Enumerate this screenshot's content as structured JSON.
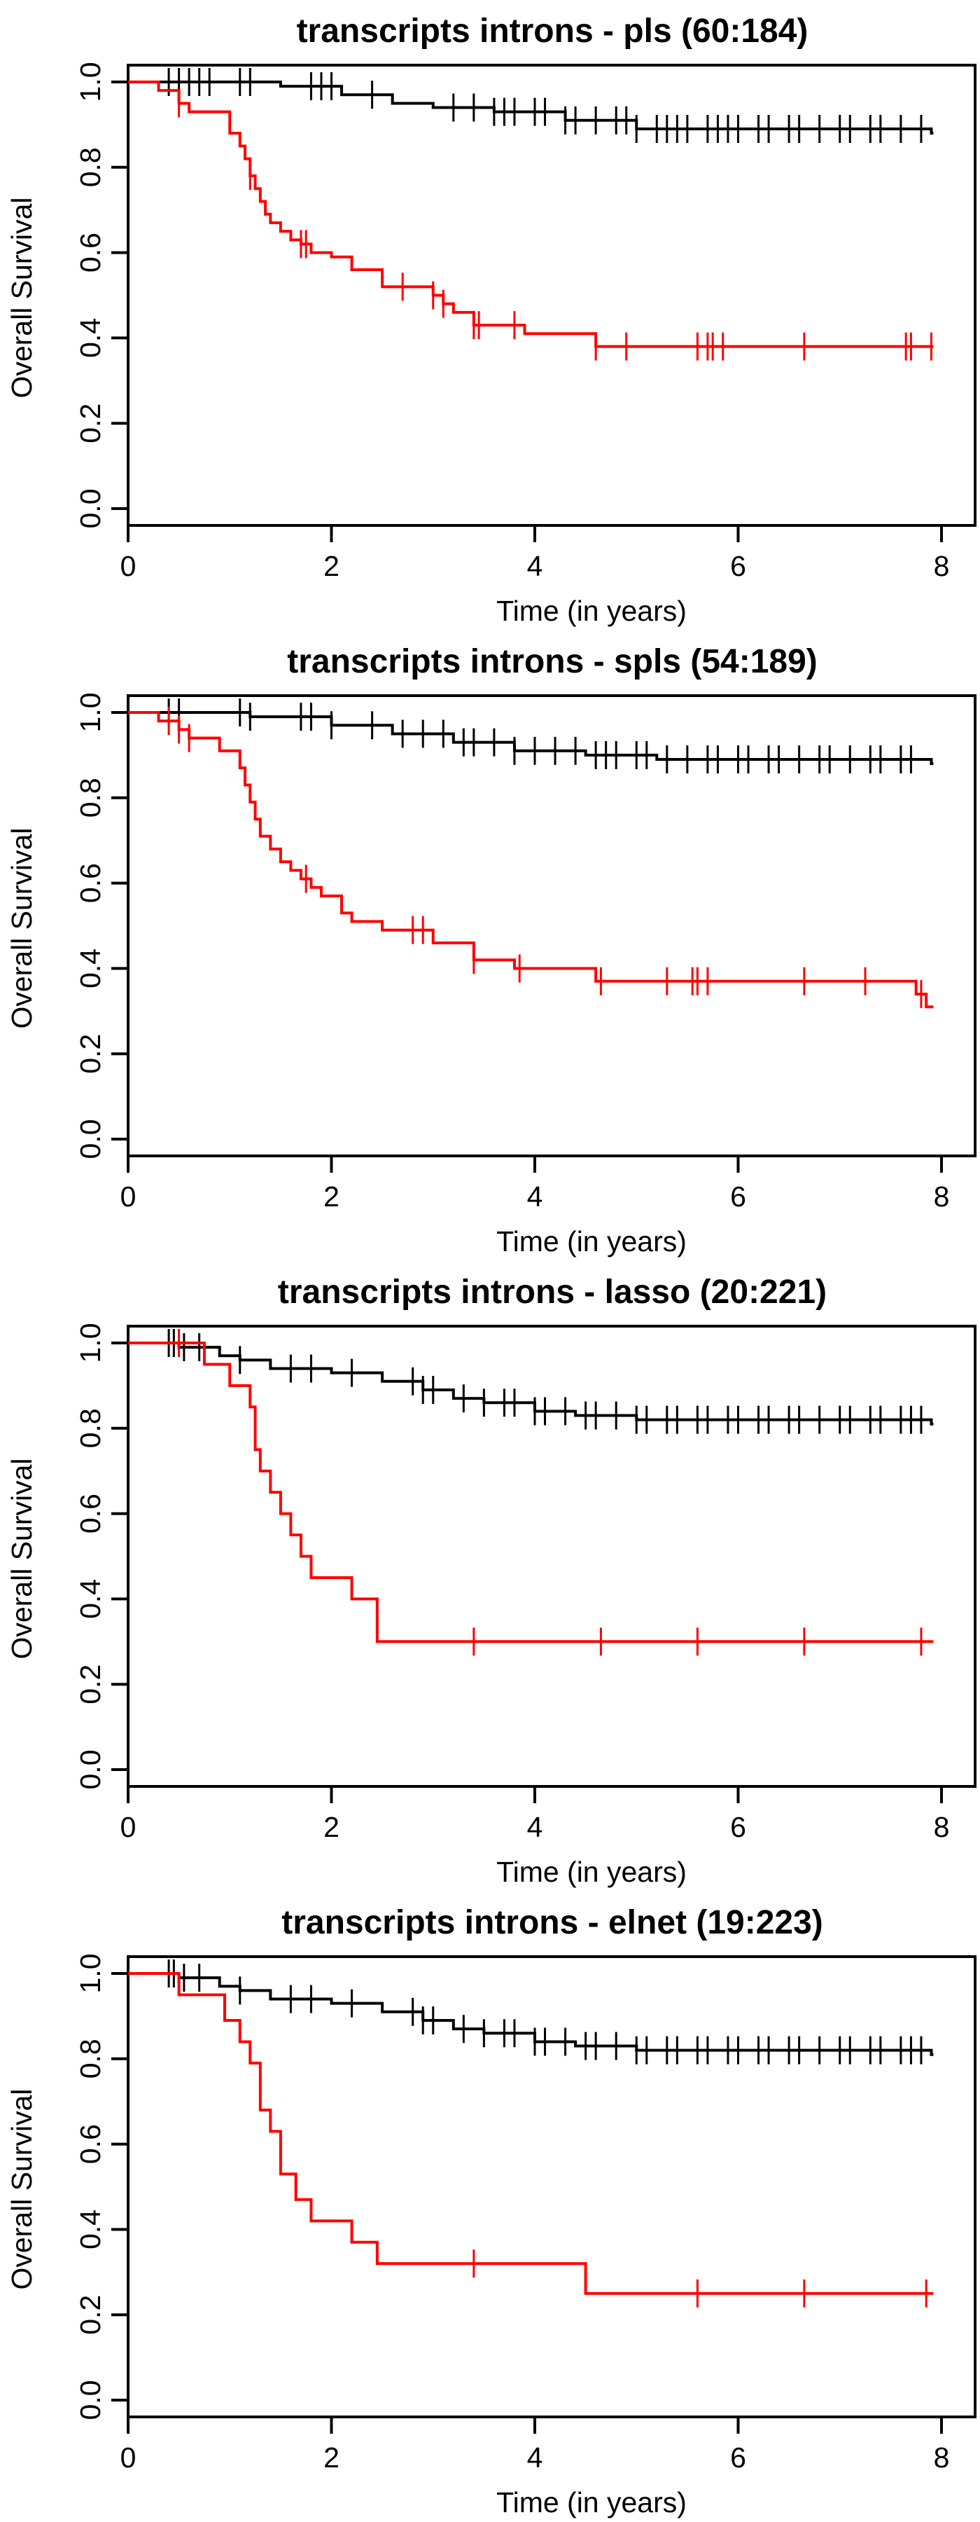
{
  "chart_data": [
    {
      "type": "line",
      "title": "transcripts introns - pls (60:184)",
      "xlabel": "Time (in years)",
      "ylabel": "Overall Survival",
      "xlim": [
        0,
        8
      ],
      "ylim": [
        0,
        1
      ],
      "xticks": [
        "0",
        "2",
        "4",
        "6",
        "8"
      ],
      "yticks": [
        "0.0",
        "0.2",
        "0.4",
        "0.6",
        "0.8",
        "1.0"
      ],
      "colors": {
        "low": "#000000",
        "high": "#ff0000"
      },
      "series": [
        {
          "color": "#000000",
          "x": [
            0,
            1.5,
            2.1,
            2.6,
            3.0,
            3.6,
            4.3,
            5.0,
            7.9
          ],
          "y": [
            1.0,
            0.99,
            0.97,
            0.95,
            0.94,
            0.93,
            0.91,
            0.89,
            0.88
          ],
          "censor_x": [
            0.4,
            0.5,
            0.6,
            0.7,
            0.8,
            1.1,
            1.2,
            1.8,
            1.9,
            2.0,
            2.4,
            3.2,
            3.4,
            3.6,
            3.7,
            3.8,
            4.0,
            4.1,
            4.3,
            4.4,
            4.6,
            4.8,
            4.9,
            5.0,
            5.2,
            5.3,
            5.4,
            5.5,
            5.7,
            5.8,
            5.9,
            6.0,
            6.2,
            6.3,
            6.5,
            6.6,
            6.8,
            7.0,
            7.1,
            7.3,
            7.4,
            7.6,
            7.8
          ]
        },
        {
          "color": "#ff0000",
          "x": [
            0,
            0.3,
            0.5,
            0.6,
            1.0,
            1.1,
            1.15,
            1.2,
            1.25,
            1.3,
            1.35,
            1.4,
            1.5,
            1.6,
            1.7,
            1.8,
            2.0,
            2.2,
            2.5,
            2.7,
            3.0,
            3.1,
            3.2,
            3.4,
            3.9,
            4.6
          ],
          "y": [
            1.0,
            0.98,
            0.95,
            0.93,
            0.88,
            0.85,
            0.82,
            0.78,
            0.75,
            0.72,
            0.69,
            0.67,
            0.65,
            0.63,
            0.62,
            0.6,
            0.59,
            0.56,
            0.52,
            0.52,
            0.5,
            0.48,
            0.46,
            0.43,
            0.41,
            0.38
          ],
          "censor_x": [
            0.5,
            1.2,
            1.7,
            1.75,
            2.7,
            3.0,
            3.1,
            3.4,
            3.45,
            3.8,
            4.6,
            4.9,
            5.6,
            5.7,
            5.75,
            5.85,
            6.65,
            7.65,
            7.7,
            7.9
          ]
        }
      ]
    },
    {
      "type": "line",
      "title": "transcripts introns - spls (54:189)",
      "xlabel": "Time (in years)",
      "ylabel": "Overall Survival",
      "xlim": [
        0,
        8
      ],
      "ylim": [
        0,
        1
      ],
      "xticks": [
        "0",
        "2",
        "4",
        "6",
        "8"
      ],
      "yticks": [
        "0.0",
        "0.2",
        "0.4",
        "0.6",
        "0.8",
        "1.0"
      ],
      "colors": {
        "low": "#000000",
        "high": "#ff0000"
      },
      "series": [
        {
          "color": "#000000",
          "x": [
            0,
            1.2,
            2.0,
            2.6,
            3.2,
            3.8,
            4.5,
            5.2,
            7.9
          ],
          "y": [
            1.0,
            0.99,
            0.97,
            0.95,
            0.93,
            0.91,
            0.9,
            0.89,
            0.88
          ],
          "censor_x": [
            0.4,
            0.5,
            1.1,
            1.2,
            1.7,
            1.8,
            2.0,
            2.4,
            2.7,
            2.9,
            3.1,
            3.3,
            3.4,
            3.6,
            3.8,
            4.0,
            4.2,
            4.4,
            4.6,
            4.7,
            4.8,
            5.0,
            5.1,
            5.3,
            5.5,
            5.7,
            5.8,
            6.0,
            6.1,
            6.3,
            6.4,
            6.6,
            6.8,
            6.9,
            7.1,
            7.3,
            7.4,
            7.6,
            7.7
          ]
        },
        {
          "color": "#ff0000",
          "x": [
            0,
            0.3,
            0.5,
            0.6,
            0.9,
            1.1,
            1.15,
            1.2,
            1.25,
            1.3,
            1.4,
            1.5,
            1.6,
            1.7,
            1.8,
            1.9,
            2.1,
            2.2,
            2.5,
            3.0,
            3.4,
            3.8,
            4.6,
            7.75,
            7.85
          ],
          "y": [
            1.0,
            0.98,
            0.96,
            0.94,
            0.91,
            0.87,
            0.83,
            0.79,
            0.75,
            0.71,
            0.68,
            0.65,
            0.63,
            0.61,
            0.59,
            0.57,
            0.53,
            0.51,
            0.49,
            0.46,
            0.42,
            0.4,
            0.37,
            0.34,
            0.31
          ],
          "censor_x": [
            0.4,
            0.5,
            0.6,
            1.75,
            2.8,
            2.9,
            3.4,
            3.85,
            4.65,
            5.3,
            5.55,
            5.6,
            5.7,
            6.65,
            7.25,
            7.8
          ]
        }
      ]
    },
    {
      "type": "line",
      "title": "transcripts introns - lasso (20:221)",
      "xlabel": "Time (in years)",
      "ylabel": "Overall Survival",
      "xlim": [
        0,
        8
      ],
      "ylim": [
        0,
        1
      ],
      "xticks": [
        "0",
        "2",
        "4",
        "6",
        "8"
      ],
      "yticks": [
        "0.0",
        "0.2",
        "0.4",
        "0.6",
        "0.8",
        "1.0"
      ],
      "colors": {
        "low": "#000000",
        "high": "#ff0000"
      },
      "series": [
        {
          "color": "#000000",
          "x": [
            0,
            0.5,
            0.9,
            1.1,
            1.4,
            2.0,
            2.5,
            2.9,
            3.2,
            3.5,
            4.0,
            4.4,
            5.0,
            7.9
          ],
          "y": [
            1.0,
            0.99,
            0.97,
            0.96,
            0.94,
            0.93,
            0.91,
            0.89,
            0.87,
            0.86,
            0.84,
            0.83,
            0.82,
            0.81
          ],
          "censor_x": [
            0.4,
            0.45,
            0.55,
            0.7,
            1.1,
            1.6,
            1.8,
            2.2,
            2.8,
            2.9,
            3.0,
            3.3,
            3.5,
            3.7,
            3.8,
            4.0,
            4.1,
            4.3,
            4.5,
            4.6,
            4.8,
            5.0,
            5.1,
            5.3,
            5.4,
            5.6,
            5.7,
            5.9,
            6.0,
            6.2,
            6.3,
            6.5,
            6.6,
            6.8,
            7.0,
            7.1,
            7.3,
            7.4,
            7.6,
            7.7,
            7.8
          ]
        },
        {
          "color": "#ff0000",
          "x": [
            0,
            0.75,
            1.0,
            1.2,
            1.25,
            1.3,
            1.4,
            1.5,
            1.6,
            1.7,
            1.8,
            2.2,
            2.45
          ],
          "y": [
            1.0,
            0.95,
            0.9,
            0.85,
            0.75,
            0.7,
            0.65,
            0.6,
            0.55,
            0.5,
            0.45,
            0.4,
            0.3
          ],
          "censor_x": [
            0.5,
            3.4,
            4.65,
            5.6,
            6.65,
            7.8
          ]
        }
      ]
    },
    {
      "type": "line",
      "title": "transcripts introns - elnet (19:223)",
      "xlabel": "Time (in years)",
      "ylabel": "Overall Survival",
      "xlim": [
        0,
        8
      ],
      "ylim": [
        0,
        1
      ],
      "xticks": [
        "0",
        "2",
        "4",
        "6",
        "8"
      ],
      "yticks": [
        "0.0",
        "0.2",
        "0.4",
        "0.6",
        "0.8",
        "1.0"
      ],
      "colors": {
        "low": "#000000",
        "high": "#ff0000"
      },
      "series": [
        {
          "color": "#000000",
          "x": [
            0,
            0.5,
            0.9,
            1.1,
            1.4,
            2.0,
            2.5,
            2.9,
            3.2,
            3.5,
            4.0,
            4.4,
            5.0,
            7.9
          ],
          "y": [
            1.0,
            0.99,
            0.97,
            0.96,
            0.94,
            0.93,
            0.91,
            0.89,
            0.87,
            0.86,
            0.84,
            0.83,
            0.82,
            0.81
          ],
          "censor_x": [
            0.4,
            0.45,
            0.55,
            0.7,
            1.1,
            1.6,
            1.8,
            2.2,
            2.8,
            2.9,
            3.0,
            3.3,
            3.5,
            3.7,
            3.8,
            4.0,
            4.1,
            4.3,
            4.5,
            4.6,
            4.8,
            5.0,
            5.1,
            5.3,
            5.4,
            5.6,
            5.7,
            5.9,
            6.0,
            6.2,
            6.3,
            6.5,
            6.6,
            6.8,
            7.0,
            7.1,
            7.3,
            7.4,
            7.6,
            7.7,
            7.8
          ]
        },
        {
          "color": "#ff0000",
          "x": [
            0,
            0.5,
            0.95,
            1.1,
            1.2,
            1.3,
            1.4,
            1.5,
            1.65,
            1.8,
            2.2,
            2.45,
            4.5
          ],
          "y": [
            1.0,
            0.95,
            0.89,
            0.84,
            0.79,
            0.68,
            0.63,
            0.53,
            0.47,
            0.42,
            0.37,
            0.32,
            0.25
          ],
          "censor_x": [
            3.4,
            5.6,
            6.65,
            7.85
          ]
        }
      ]
    }
  ]
}
